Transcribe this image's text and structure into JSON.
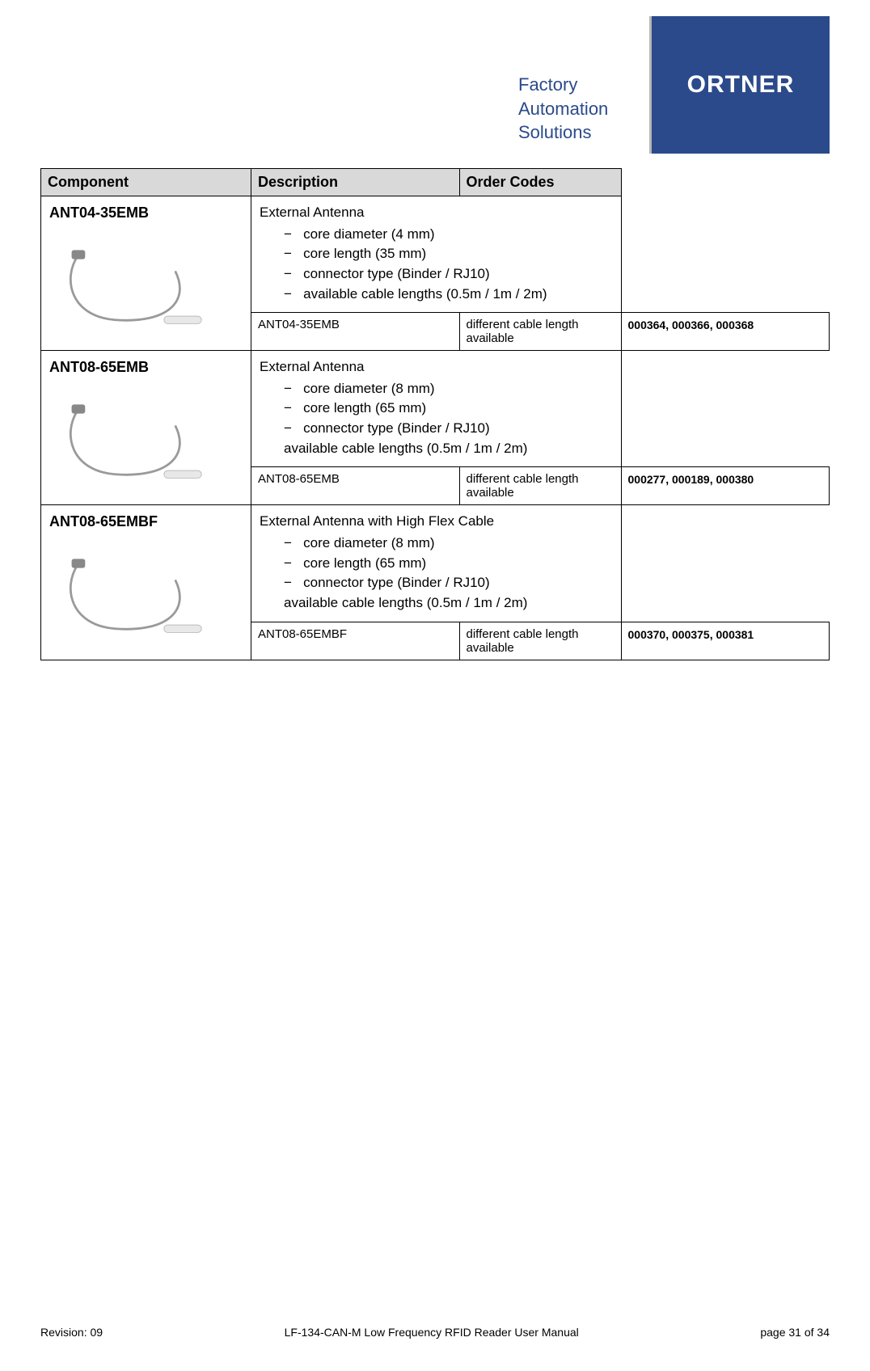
{
  "brand": {
    "tagline_line1": "Factory",
    "tagline_line2": "Automation",
    "tagline_line3": "Solutions",
    "logo_text": "ORTNER",
    "brand_color": "#2b4a8b",
    "divider_color": "#b8b8b8"
  },
  "table": {
    "headers": {
      "component": "Component",
      "description": "Description",
      "order_codes": "Order Codes"
    },
    "header_bg": "#d9d9d9",
    "rows": [
      {
        "name": "ANT04-35EMB",
        "desc_title": "External Antenna",
        "specs": [
          "core diameter (4 mm)",
          "core length (35 mm)",
          "connector type (Binder / RJ10)",
          "available cable lengths (0.5m / 1m / 2m)"
        ],
        "trailing_note": "",
        "sub_model": "ANT04-35EMB",
        "sub_note": "different cable length available",
        "codes": "000364, 000366, 000368"
      },
      {
        "name": "ANT08-65EMB",
        "desc_title": "External Antenna",
        "specs": [
          "core diameter (8 mm)",
          "core length (65 mm)",
          "connector type (Binder / RJ10)"
        ],
        "trailing_note": "available cable lengths (0.5m / 1m / 2m)",
        "sub_model": "ANT08-65EMB",
        "sub_note": "different cable length available",
        "codes": "000277, 000189, 000380"
      },
      {
        "name": "ANT08-65EMBF",
        "desc_title": "External Antenna with High Flex Cable",
        "specs": [
          "core diameter (8 mm)",
          "core length (65 mm)",
          "connector type (Binder / RJ10)"
        ],
        "trailing_note": "available cable lengths (0.5m / 1m / 2m)",
        "sub_model": "ANT08-65EMBF",
        "sub_note": "different cable length available",
        "codes": "000370, 000375, 000381"
      }
    ]
  },
  "footer": {
    "revision": "Revision: 09",
    "doc_title": "LF-134-CAN-M Low Frequency RFID Reader User Manual",
    "page": "page 31 of 34"
  }
}
